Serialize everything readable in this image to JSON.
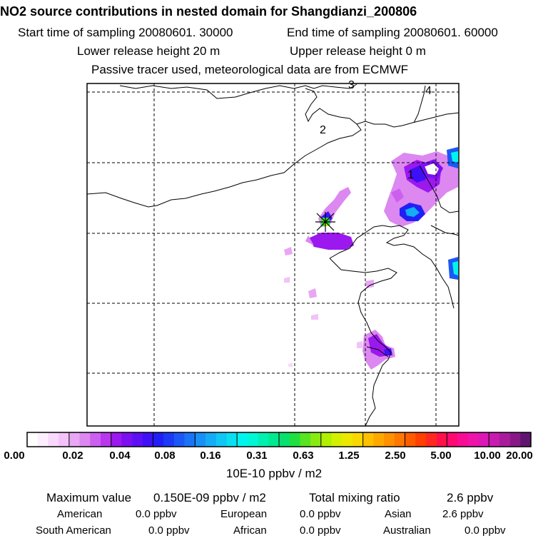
{
  "header": {
    "title": "NO2 source contributions in nested domain for Shangdianzi_200806",
    "start_label": "Start time of sampling 20080601. 30000",
    "end_label": "End time of sampling 20080601. 60000",
    "lower_label": "Lower release height   20 m",
    "upper_label": "Upper release height    0 m",
    "tracer_label": "Passive tracer used, meteorological data are from ECMWF"
  },
  "map": {
    "region_labels": [
      "1",
      "2",
      "3",
      "4"
    ],
    "receptor_marker": "Shangdianzi station",
    "gridlines": "dashed",
    "colors": {
      "boundary": "#000000",
      "grid": "#000000",
      "frame": "#000000"
    }
  },
  "colorbar": {
    "tick_labels": [
      "0.00",
      "0.02",
      "0.04",
      "0.08",
      "0.16",
      "0.31",
      "0.63",
      "1.25",
      "2.50",
      "5.00",
      "10.00",
      "20.00"
    ],
    "unit": "10E-10 ppbv / m2",
    "colors": [
      "#ffffff",
      "#fdeefd",
      "#f8d8fb",
      "#f2c2f8",
      "#e8a6f4",
      "#dc88f0",
      "#cc5ff0",
      "#b938ee",
      "#9b18ef",
      "#7b10f1",
      "#5c10f3",
      "#3e10f5",
      "#2020f6",
      "#1c3af5",
      "#1c58f5",
      "#1a74f5",
      "#1890f5",
      "#14acf5",
      "#10c6f5",
      "#08e0f2",
      "#00f4ee",
      "#00f6d4",
      "#00f0b0",
      "#00e890",
      "#08e070",
      "#20e040",
      "#58e420",
      "#88ea10",
      "#b0f000",
      "#d4f000",
      "#eee800",
      "#f8d800",
      "#ffc000",
      "#ffa800",
      "#ff9000",
      "#ff7600",
      "#ff5c00",
      "#ff4000",
      "#ff2820",
      "#ff1048",
      "#ff0870",
      "#f80c94",
      "#ee14aa",
      "#dc18b4",
      "#c81cb0",
      "#a81c9c",
      "#881888",
      "#601470"
    ]
  },
  "stats": {
    "max_label": "Maximum value",
    "max_value": "0.150E-09 ppbv / m2",
    "total_label": "Total mixing ratio",
    "total_value": "2.6 ppbv",
    "regions": [
      {
        "name": "American",
        "value": "0.0 ppbv"
      },
      {
        "name": "European",
        "value": "0.0 ppbv"
      },
      {
        "name": "Asian",
        "value": "2.6 ppbv"
      },
      {
        "name": "South American",
        "value": "0.0 ppbv"
      },
      {
        "name": "African",
        "value": "0.0 ppbv"
      },
      {
        "name": "Australian",
        "value": "0.0 ppbv"
      }
    ]
  }
}
